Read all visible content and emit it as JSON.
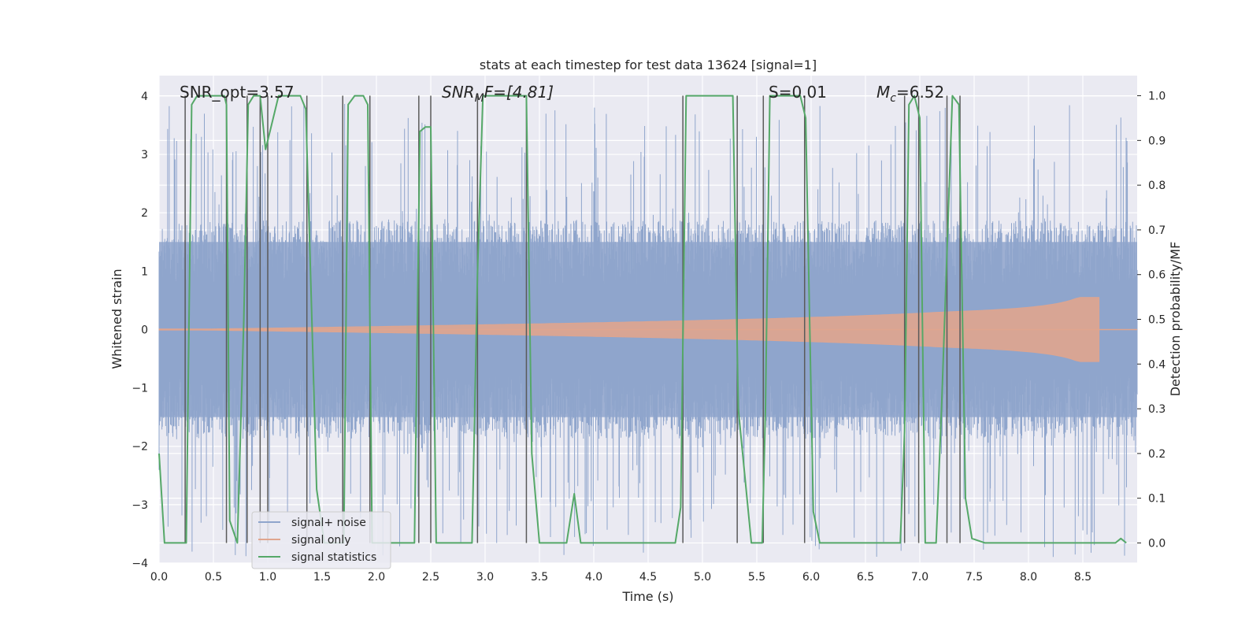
{
  "chart_data": {
    "type": "line",
    "title": "stats at each timestep for test data 13624 [signal=1]",
    "xlabel": "Time (s)",
    "ylabel": "Whitened strain",
    "y2label": "Detection probability/MF",
    "xlim": [
      0,
      9.0
    ],
    "ylim": [
      -4.0,
      4.35
    ],
    "y2lim": [
      -0.045,
      1.045
    ],
    "x_ticks": [
      "0.0",
      "0.5",
      "1.0",
      "1.5",
      "2.0",
      "2.5",
      "3.0",
      "3.5",
      "4.0",
      "4.5",
      "5.0",
      "5.5",
      "6.0",
      "6.5",
      "7.0",
      "7.5",
      "8.0",
      "8.5"
    ],
    "x_tick_values": [
      0,
      0.5,
      1.0,
      1.5,
      2.0,
      2.5,
      3.0,
      3.5,
      4.0,
      4.5,
      5.0,
      5.5,
      6.0,
      6.5,
      7.0,
      7.5,
      8.0,
      8.5
    ],
    "y_ticks": [
      "4",
      "3",
      "2",
      "1",
      "0",
      "−1",
      "−2",
      "−3",
      "−4"
    ],
    "y_tick_values": [
      4,
      3,
      2,
      1,
      0,
      -1,
      -2,
      -3,
      -4
    ],
    "y2_ticks": [
      "1.0",
      "0.9",
      "0.8",
      "0.7",
      "0.6",
      "0.5",
      "0.4",
      "0.3",
      "0.2",
      "0.1",
      "0.0"
    ],
    "y2_tick_values": [
      1.0,
      0.9,
      0.8,
      0.7,
      0.6,
      0.5,
      0.4,
      0.3,
      0.2,
      0.1,
      0.0
    ],
    "grid": true,
    "legend_position": "lower-left",
    "annotations": {
      "snr_opt": "SNR_opt=3.57",
      "snr_mf_main": "SNR",
      "snr_mf_sub": "M",
      "snr_mf_rest": "F=[4.81]",
      "s_label": "S=0.01",
      "mc_main": "M",
      "mc_sub": "c",
      "mc_rest": "=6.52"
    },
    "series": [
      {
        "name": "signal+ noise",
        "color": "#8fa5cc",
        "envelope_typical": 1.7,
        "spike_max": 3.9,
        "x_range": [
          0,
          9.0
        ]
      },
      {
        "name": "signal only",
        "color": "#e0a58e",
        "chirp_end_time": 8.65,
        "chirp_peak_amplitude": 0.55
      },
      {
        "name": "signal statistics",
        "color": "#55a868",
        "axis": "right",
        "points": [
          [
            0.0,
            0.2
          ],
          [
            0.05,
            0.0
          ],
          [
            0.25,
            0.0
          ],
          [
            0.3,
            0.98
          ],
          [
            0.35,
            1.0
          ],
          [
            0.6,
            1.0
          ],
          [
            0.62,
            0.98
          ],
          [
            0.65,
            0.05
          ],
          [
            0.72,
            0.0
          ],
          [
            0.78,
            0.5
          ],
          [
            0.82,
            0.98
          ],
          [
            0.87,
            1.0
          ],
          [
            0.93,
            1.0
          ],
          [
            0.98,
            0.88
          ],
          [
            1.02,
            0.92
          ],
          [
            1.1,
            1.0
          ],
          [
            1.3,
            1.0
          ],
          [
            1.35,
            0.97
          ],
          [
            1.4,
            0.55
          ],
          [
            1.45,
            0.12
          ],
          [
            1.52,
            0.0
          ],
          [
            1.7,
            0.0
          ],
          [
            1.74,
            0.98
          ],
          [
            1.8,
            1.0
          ],
          [
            1.88,
            1.0
          ],
          [
            1.92,
            0.98
          ],
          [
            1.96,
            0.0
          ],
          [
            2.35,
            0.0
          ],
          [
            2.4,
            0.92
          ],
          [
            2.45,
            0.93
          ],
          [
            2.5,
            0.93
          ],
          [
            2.55,
            0.0
          ],
          [
            2.75,
            0.0
          ],
          [
            2.88,
            0.0
          ],
          [
            2.93,
            0.6
          ],
          [
            2.98,
            1.0
          ],
          [
            3.38,
            1.0
          ],
          [
            3.43,
            0.2
          ],
          [
            3.5,
            0.0
          ],
          [
            3.75,
            0.0
          ],
          [
            3.82,
            0.11
          ],
          [
            3.88,
            0.0
          ],
          [
            4.75,
            0.0
          ],
          [
            4.8,
            0.08
          ],
          [
            4.85,
            1.0
          ],
          [
            5.28,
            1.0
          ],
          [
            5.33,
            0.3
          ],
          [
            5.45,
            0.0
          ],
          [
            5.55,
            0.0
          ],
          [
            5.58,
            0.3
          ],
          [
            5.62,
            1.0
          ],
          [
            5.9,
            1.0
          ],
          [
            5.95,
            0.95
          ],
          [
            6.02,
            0.07
          ],
          [
            6.08,
            0.0
          ],
          [
            6.82,
            0.0
          ],
          [
            6.86,
            0.25
          ],
          [
            6.9,
            0.98
          ],
          [
            6.95,
            1.0
          ],
          [
            7.0,
            0.95
          ],
          [
            7.05,
            0.0
          ],
          [
            7.15,
            0.0
          ],
          [
            7.2,
            0.3
          ],
          [
            7.3,
            1.0
          ],
          [
            7.36,
            0.98
          ],
          [
            7.42,
            0.1
          ],
          [
            7.48,
            0.01
          ],
          [
            7.6,
            0.0
          ],
          [
            8.5,
            0.0
          ],
          [
            8.6,
            0.0
          ],
          [
            8.7,
            0.0
          ],
          [
            8.8,
            0.0
          ],
          [
            8.85,
            0.01
          ],
          [
            8.9,
            0.0
          ]
        ]
      }
    ],
    "vertical_lines": [
      0.24,
      0.62,
      0.81,
      0.93,
      1.0,
      1.36,
      1.69,
      1.94,
      2.39,
      2.5,
      2.93,
      3.38,
      4.82,
      5.32,
      5.56,
      5.94,
      6.86,
      6.99,
      7.25,
      7.37
    ],
    "vertical_line_color": "#5a5a5a"
  }
}
